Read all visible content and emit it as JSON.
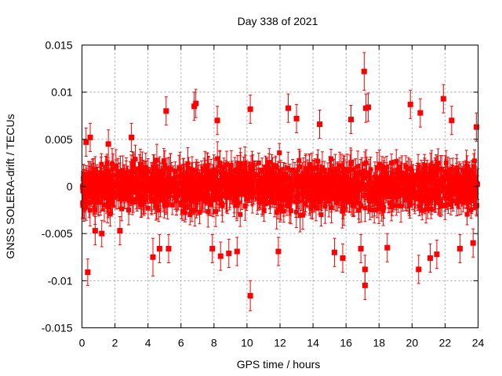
{
  "chart_data": {
    "type": "scatter",
    "title": "Day 338 of 2021",
    "xlabel": "GPS time / hours",
    "ylabel": "GNSS SOLERA-drift / TECUs",
    "xlim": [
      0,
      24
    ],
    "ylim": [
      -0.015,
      0.015
    ],
    "x_ticks": [
      0,
      2,
      4,
      6,
      8,
      10,
      12,
      14,
      16,
      18,
      20,
      22,
      24
    ],
    "y_ticks": [
      -0.015,
      -0.01,
      -0.005,
      0,
      0.005,
      0.01,
      0.015
    ],
    "y_tick_labels": [
      "-0.015",
      "-0.01",
      "-0.005",
      "0",
      "0.005",
      "0.01",
      "0.015"
    ],
    "grid": true,
    "series": [
      {
        "color": "#ff0000",
        "marker": "square",
        "error_bars": true,
        "points": [
          {
            "x": 0.1,
            "y": 0.0008,
            "err": 0.0015
          },
          {
            "x": 0.25,
            "y": 0.0047,
            "err": 0.0015
          },
          {
            "x": 0.35,
            "y": -0.0091,
            "err": 0.0014
          },
          {
            "x": 0.5,
            "y": 0.0052,
            "err": 0.0015
          },
          {
            "x": 0.8,
            "y": -0.0047,
            "err": 0.0015
          },
          {
            "x": 1.2,
            "y": -0.005,
            "err": 0.0014
          },
          {
            "x": 1.6,
            "y": 0.0045,
            "err": 0.0015
          },
          {
            "x": 2.3,
            "y": -0.0047,
            "err": 0.0015
          },
          {
            "x": 3.0,
            "y": 0.0052,
            "err": 0.0015
          },
          {
            "x": 4.3,
            "y": -0.0075,
            "err": 0.002
          },
          {
            "x": 4.7,
            "y": -0.0066,
            "err": 0.0015
          },
          {
            "x": 5.1,
            "y": 0.008,
            "err": 0.0015
          },
          {
            "x": 5.25,
            "y": -0.0066,
            "err": 0.0015
          },
          {
            "x": 6.8,
            "y": 0.0085,
            "err": 0.0015
          },
          {
            "x": 6.9,
            "y": 0.0088,
            "err": 0.0015
          },
          {
            "x": 7.9,
            "y": -0.0066,
            "err": 0.0015
          },
          {
            "x": 8.2,
            "y": 0.007,
            "err": 0.0015
          },
          {
            "x": 8.4,
            "y": -0.0074,
            "err": 0.0015
          },
          {
            "x": 8.9,
            "y": -0.0071,
            "err": 0.0015
          },
          {
            "x": 9.4,
            "y": -0.0069,
            "err": 0.0015
          },
          {
            "x": 10.2,
            "y": 0.0082,
            "err": 0.0015
          },
          {
            "x": 10.2,
            "y": -0.0116,
            "err": 0.0016
          },
          {
            "x": 11.9,
            "y": -0.0069,
            "err": 0.0015
          },
          {
            "x": 12.5,
            "y": 0.0083,
            "err": 0.0015
          },
          {
            "x": 13.0,
            "y": 0.0072,
            "err": 0.0015
          },
          {
            "x": 14.4,
            "y": 0.0066,
            "err": 0.0015
          },
          {
            "x": 15.3,
            "y": -0.007,
            "err": 0.0015
          },
          {
            "x": 15.8,
            "y": -0.0076,
            "err": 0.0015
          },
          {
            "x": 16.3,
            "y": 0.0071,
            "err": 0.0015
          },
          {
            "x": 16.9,
            "y": -0.0066,
            "err": 0.0015
          },
          {
            "x": 17.1,
            "y": 0.0122,
            "err": 0.002
          },
          {
            "x": 17.15,
            "y": -0.0088,
            "err": 0.0015
          },
          {
            "x": 17.15,
            "y": -0.0105,
            "err": 0.0015
          },
          {
            "x": 17.2,
            "y": 0.0083,
            "err": 0.0015
          },
          {
            "x": 17.35,
            "y": 0.0084,
            "err": 0.0015
          },
          {
            "x": 18.5,
            "y": -0.0065,
            "err": 0.0015
          },
          {
            "x": 19.9,
            "y": 0.0087,
            "err": 0.0015
          },
          {
            "x": 20.4,
            "y": -0.0088,
            "err": 0.0015
          },
          {
            "x": 20.5,
            "y": 0.0078,
            "err": 0.0015
          },
          {
            "x": 21.1,
            "y": -0.0076,
            "err": 0.0015
          },
          {
            "x": 21.5,
            "y": -0.0072,
            "err": 0.0015
          },
          {
            "x": 21.9,
            "y": 0.0093,
            "err": 0.0015
          },
          {
            "x": 22.4,
            "y": 0.007,
            "err": 0.0015
          },
          {
            "x": 22.9,
            "y": -0.0066,
            "err": 0.0015
          },
          {
            "x": 23.7,
            "y": -0.006,
            "err": 0.0015
          },
          {
            "x": 23.9,
            "y": 0.0063,
            "err": 0.0015
          }
        ]
      }
    ]
  }
}
